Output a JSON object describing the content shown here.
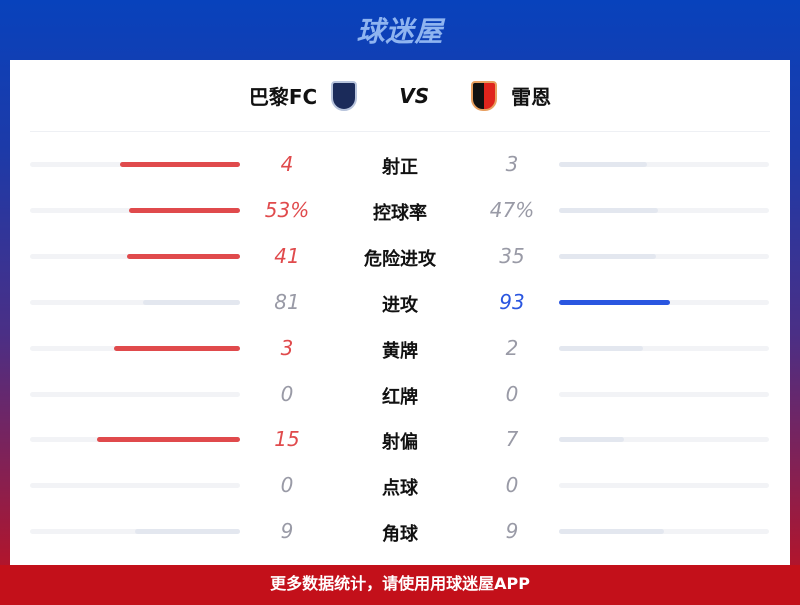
{
  "brand": "球迷屋",
  "match": {
    "home": "巴黎FC",
    "away": "雷恩",
    "vs": "VS"
  },
  "colors": {
    "home_lead": "#e04a4c",
    "away_lead": "#2a56e0",
    "muted_fill": "#e3e7ef",
    "track": "#f2f3f6"
  },
  "stats": [
    {
      "label": "射正",
      "home": "4",
      "away": "3",
      "home_fill": 0.57,
      "away_fill": 0.42,
      "lead": "home"
    },
    {
      "label": "控球率",
      "home": "53%",
      "away": "47%",
      "home_fill": 0.53,
      "away_fill": 0.47,
      "lead": "home"
    },
    {
      "label": "危险进攻",
      "home": "41",
      "away": "35",
      "home_fill": 0.54,
      "away_fill": 0.46,
      "lead": "home"
    },
    {
      "label": "进攻",
      "home": "81",
      "away": "93",
      "home_fill": 0.46,
      "away_fill": 0.53,
      "lead": "away"
    },
    {
      "label": "黄牌",
      "home": "3",
      "away": "2",
      "home_fill": 0.6,
      "away_fill": 0.4,
      "lead": "home"
    },
    {
      "label": "红牌",
      "home": "0",
      "away": "0",
      "home_fill": 0,
      "away_fill": 0,
      "lead": "none"
    },
    {
      "label": "射偏",
      "home": "15",
      "away": "7",
      "home_fill": 0.68,
      "away_fill": 0.31,
      "lead": "home"
    },
    {
      "label": "点球",
      "home": "0",
      "away": "0",
      "home_fill": 0,
      "away_fill": 0,
      "lead": "none"
    },
    {
      "label": "角球",
      "home": "9",
      "away": "9",
      "home_fill": 0.5,
      "away_fill": 0.5,
      "lead": "none"
    }
  ],
  "footer": "更多数据统计，请使用用球迷屋APP"
}
